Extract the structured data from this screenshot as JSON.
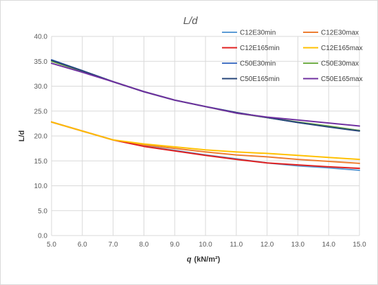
{
  "chart_data": {
    "type": "line",
    "title_main": "L/d",
    "xlabel_main": "q",
    "xlabel_unit": "(kN/m²)",
    "ylabel": "L/d",
    "xlim": [
      5,
      15
    ],
    "ylim": [
      0,
      40
    ],
    "x_ticks": [
      "5.0",
      "6.0",
      "7.0",
      "8.0",
      "9.0",
      "10.0",
      "11.0",
      "12.0",
      "13.0",
      "14.0",
      "15.0"
    ],
    "y_ticks": [
      "0.0",
      "5.0",
      "10.0",
      "15.0",
      "20.0",
      "25.0",
      "30.0",
      "35.0",
      "40.0"
    ],
    "grid": "vertical-and-horizontal",
    "legend_position": "top-right",
    "x": [
      5,
      6,
      7,
      8,
      9,
      10,
      11,
      12,
      13,
      14,
      15
    ],
    "series": [
      {
        "name": "C12E30min",
        "color": "#5b9bd5",
        "values": [
          22.8,
          21.0,
          19.2,
          18.0,
          17.1,
          16.2,
          15.4,
          14.6,
          14.0,
          13.6,
          13.1
        ]
      },
      {
        "name": "C12E30max",
        "color": "#ed7d31",
        "values": [
          22.8,
          21.0,
          19.2,
          18.2,
          17.5,
          16.8,
          16.2,
          15.8,
          15.3,
          14.9,
          14.5
        ]
      },
      {
        "name": "C12E165min",
        "color": "#e02020",
        "values": [
          22.8,
          21.0,
          19.2,
          17.9,
          17.0,
          16.1,
          15.3,
          14.6,
          14.2,
          13.8,
          13.5
        ]
      },
      {
        "name": "C12E165max",
        "color": "#ffc000",
        "values": [
          22.8,
          21.0,
          19.2,
          18.4,
          17.8,
          17.2,
          16.8,
          16.5,
          16.1,
          15.7,
          15.3
        ]
      },
      {
        "name": "C50E30min",
        "color": "#4472c4",
        "values": [
          35.3,
          33.1,
          30.9,
          28.9,
          27.2,
          25.9,
          24.7,
          23.7,
          22.7,
          21.9,
          21.1
        ]
      },
      {
        "name": "C50E30max",
        "color": "#70ad47",
        "values": [
          35.0,
          33.0,
          30.9,
          28.9,
          27.2,
          25.9,
          24.6,
          23.7,
          22.8,
          22.0,
          21.1
        ]
      },
      {
        "name": "C50E165min",
        "color": "#264478",
        "values": [
          35.2,
          33.1,
          30.9,
          28.9,
          27.2,
          25.9,
          24.7,
          23.7,
          22.7,
          21.8,
          21.0
        ]
      },
      {
        "name": "C50E165max",
        "color": "#7030a0",
        "values": [
          34.6,
          32.8,
          30.9,
          28.9,
          27.2,
          25.9,
          24.6,
          23.8,
          23.2,
          22.6,
          22.0
        ]
      }
    ]
  }
}
